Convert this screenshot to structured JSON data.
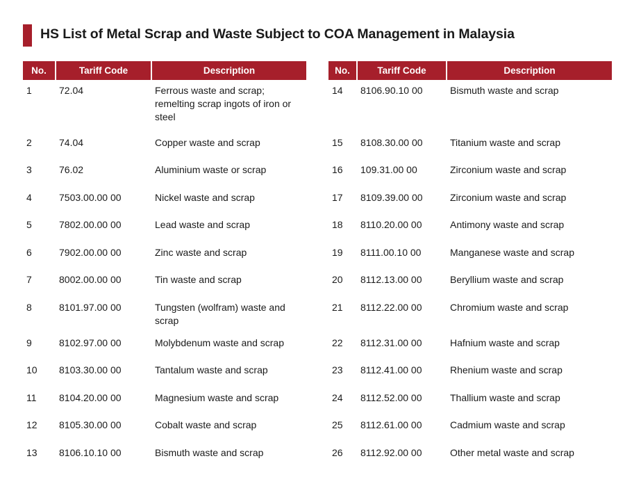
{
  "title": "HS List of Metal Scrap and Waste Subject to COA Management in Malaysia",
  "colors": {
    "accent": "#a61f2b",
    "header_text": "#ffffff"
  },
  "headers": {
    "no": "No.",
    "code": "Tariff Code",
    "desc": "Description"
  },
  "left_rows": [
    {
      "no": "1",
      "code": "72.04",
      "desc": "Ferrous waste and scrap; remelting scrap ingots of iron or steel"
    },
    {
      "no": "2",
      "code": "74.04",
      "desc": "Copper waste and scrap"
    },
    {
      "no": "3",
      "code": "76.02",
      "desc": "Aluminium waste or scrap"
    },
    {
      "no": "4",
      "code": "7503.00.00 00",
      "desc": "Nickel waste and scrap"
    },
    {
      "no": "5",
      "code": "7802.00.00 00",
      "desc": "Lead waste and scrap"
    },
    {
      "no": "6",
      "code": "7902.00.00 00",
      "desc": "Zinc waste and scrap"
    },
    {
      "no": "7",
      "code": "8002.00.00 00",
      "desc": "Tin waste and scrap"
    },
    {
      "no": "8",
      "code": "8101.97.00 00",
      "desc": "Tungsten (wolfram) waste and scrap"
    },
    {
      "no": "9",
      "code": "8102.97.00 00",
      "desc": "Molybdenum waste and scrap"
    },
    {
      "no": "10",
      "code": "8103.30.00 00",
      "desc": "Tantalum waste and scrap"
    },
    {
      "no": "11",
      "code": "8104.20.00 00",
      "desc": "Magnesium waste and scrap"
    },
    {
      "no": "12",
      "code": "8105.30.00 00",
      "desc": "Cobalt waste and scrap"
    },
    {
      "no": "13",
      "code": "8106.10.10 00",
      "desc": "Bismuth waste and scrap"
    }
  ],
  "right_rows": [
    {
      "no": "14",
      "code": "8106.90.10 00",
      "desc": "Bismuth waste and scrap"
    },
    {
      "no": "15",
      "code": "8108.30.00 00",
      "desc": "Titanium waste and scrap"
    },
    {
      "no": "16",
      "code": "109.31.00 00",
      "desc": "Zirconium waste and scrap"
    },
    {
      "no": "17",
      "code": "8109.39.00 00",
      "desc": "Zirconium waste and scrap"
    },
    {
      "no": "18",
      "code": "8110.20.00 00",
      "desc": "Antimony waste and scrap"
    },
    {
      "no": "19",
      "code": "8111.00.10 00",
      "desc": "Manganese waste and scrap"
    },
    {
      "no": "20",
      "code": "8112.13.00 00",
      "desc": "Beryllium waste and scrap"
    },
    {
      "no": "21",
      "code": "8112.22.00 00",
      "desc": "Chromium waste and scrap"
    },
    {
      "no": "22",
      "code": "8112.31.00 00",
      "desc": "Hafnium waste and scrap"
    },
    {
      "no": "23",
      "code": "8112.41.00 00",
      "desc": "Rhenium waste and scrap"
    },
    {
      "no": "24",
      "code": "8112.52.00 00",
      "desc": "Thallium waste and scrap"
    },
    {
      "no": "25",
      "code": "8112.61.00 00",
      "desc": "Cadmium waste and scrap"
    },
    {
      "no": "26",
      "code": "8112.92.00 00",
      "desc": "Other metal waste and scrap"
    }
  ]
}
